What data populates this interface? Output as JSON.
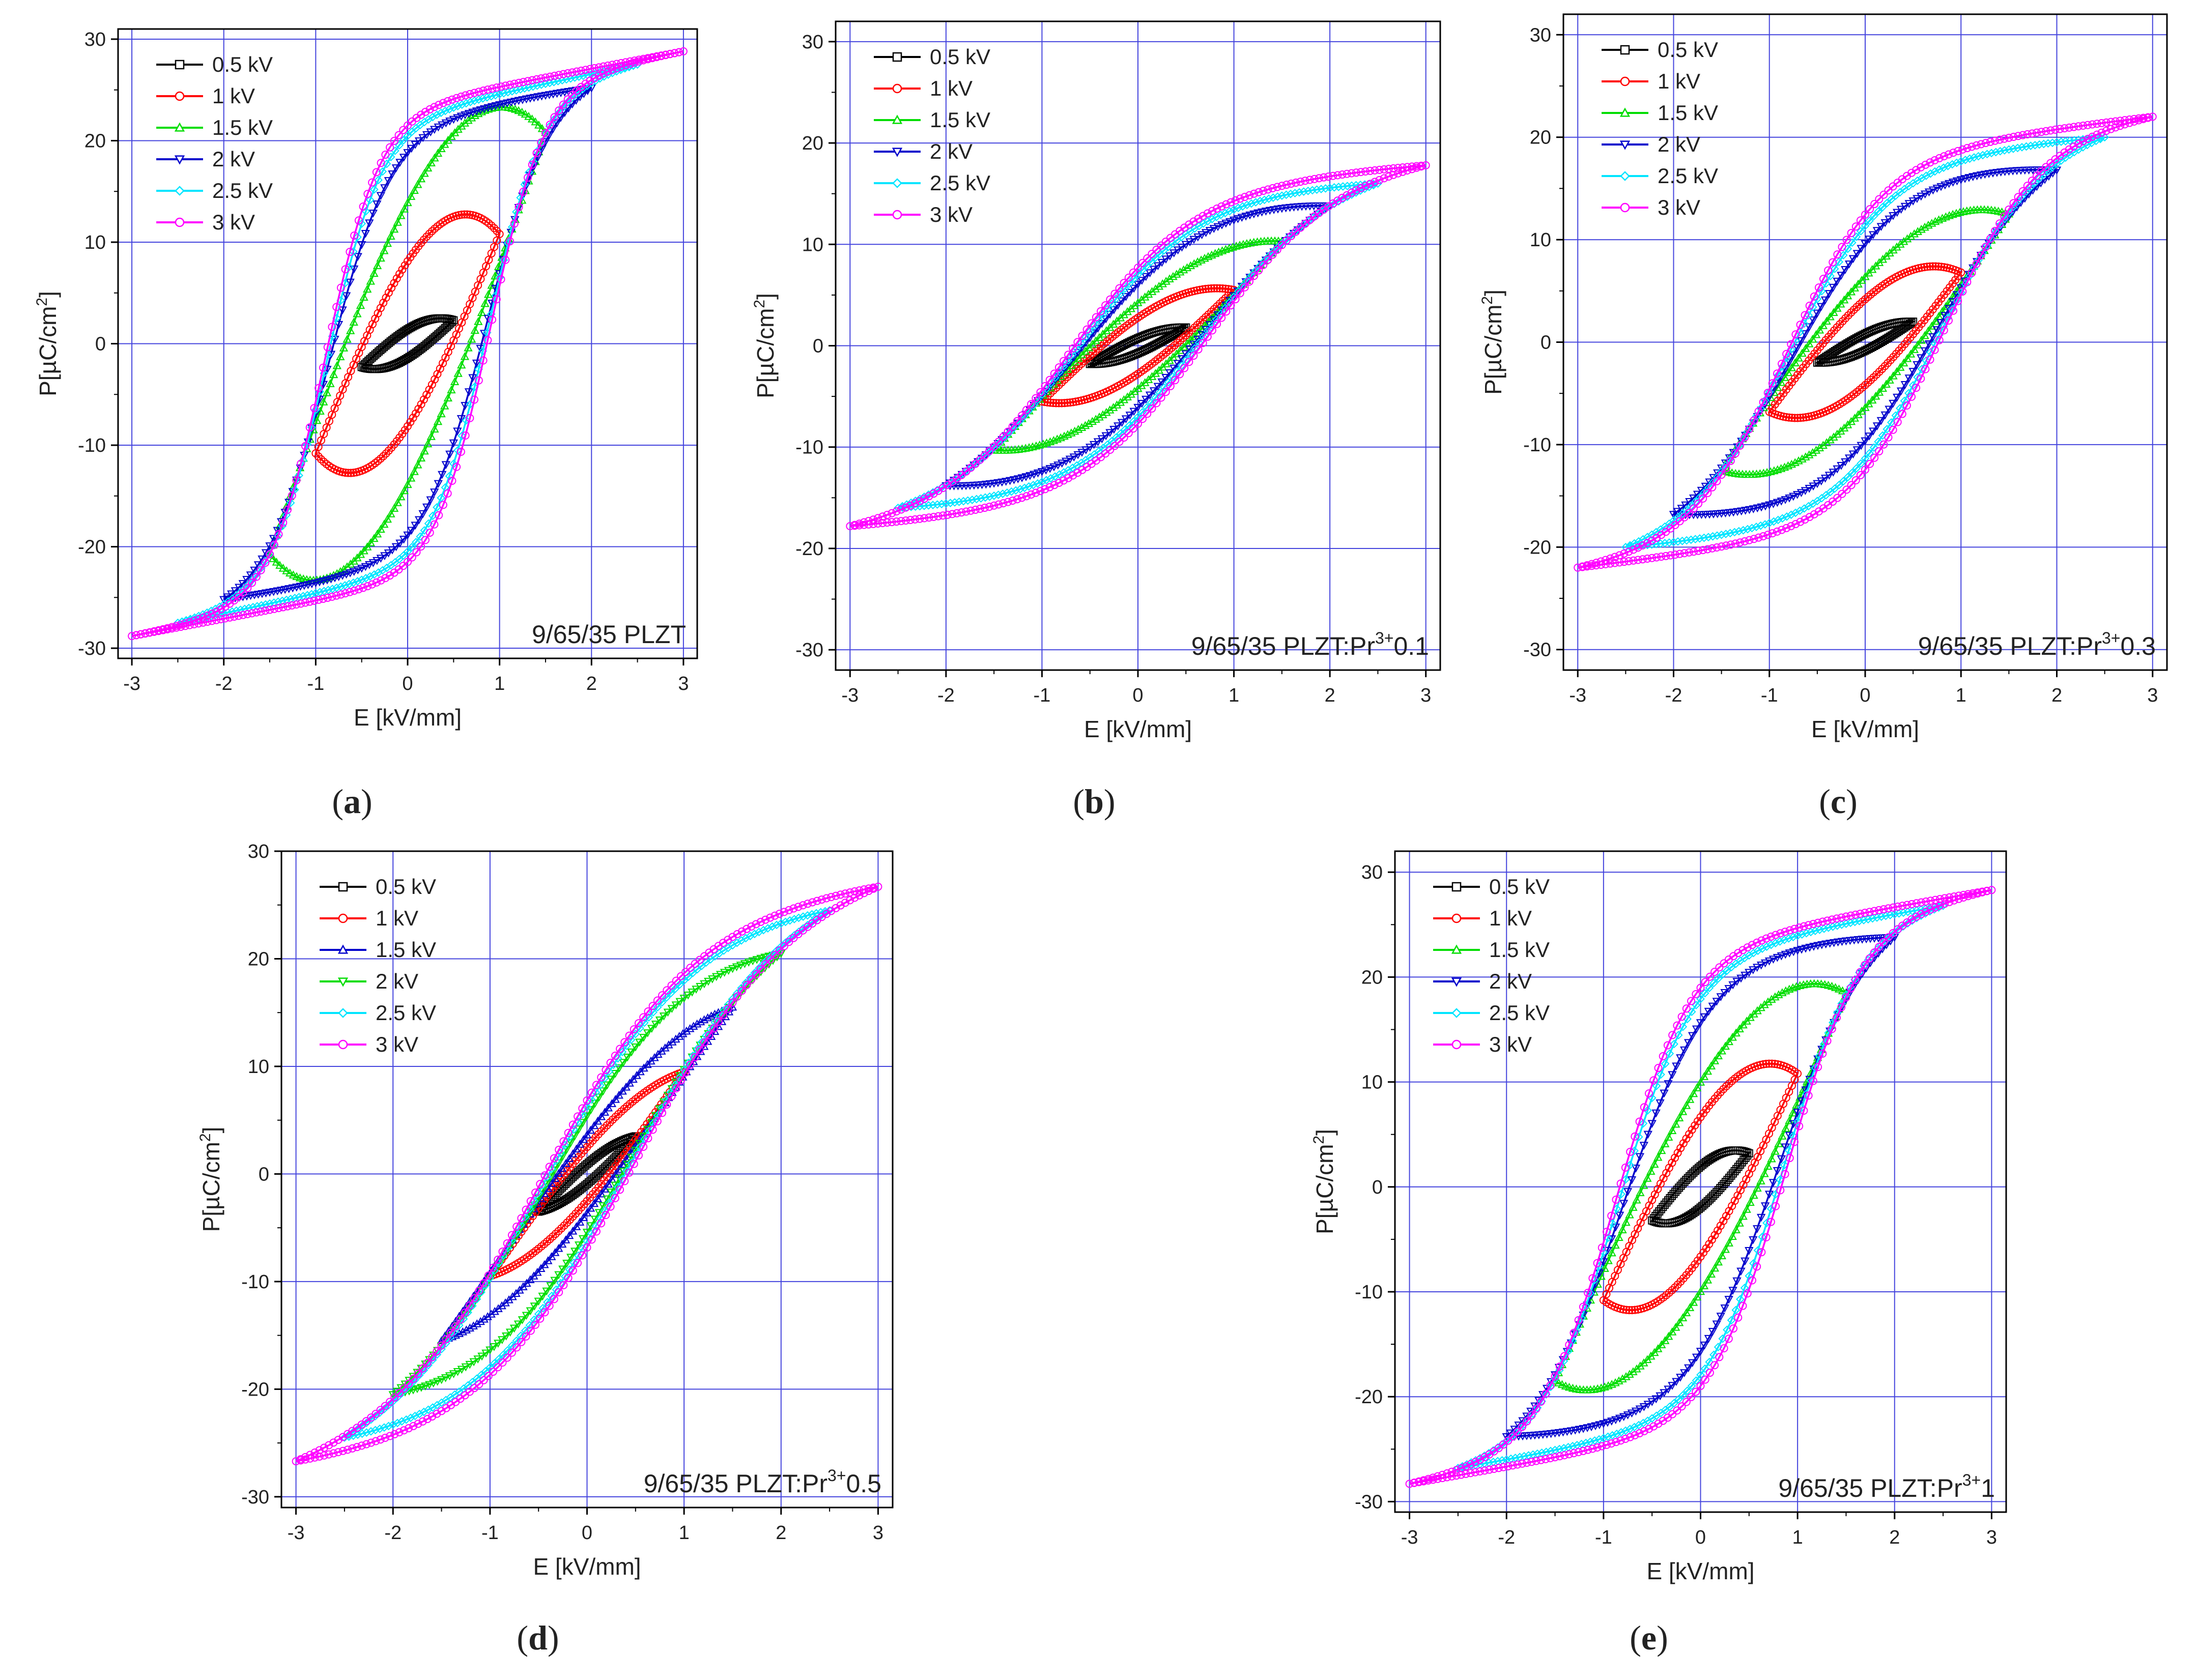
{
  "colors": {
    "loop_0_5kV": "#000000",
    "loop_1kV": "#ff0000",
    "loop_1_5kV": "#00dd00",
    "loop_2kV": "#0000cc",
    "loop_2_5kV": "#00e5ff",
    "loop_3kV": "#ff00ff",
    "grid": "#4444dd",
    "axis": "#000000"
  },
  "chart_data": [
    {
      "id": "a",
      "type": "line",
      "sublabel": "(a)",
      "annotation": {
        "text": "9/65/35 PLZT",
        "superscript": "",
        "suffix": ""
      },
      "xlabel": "E [kV/mm]",
      "ylabel": {
        "prefix": "P[",
        "mu": "µ",
        "unit": "C/cm",
        "power": "2",
        "suffix": "]"
      },
      "xlim": [
        -3.15,
        3.15
      ],
      "ylim": [
        -31,
        31
      ],
      "xticks": [
        -3,
        -2,
        -1,
        0,
        1,
        2,
        3
      ],
      "yticks": [
        -30,
        -20,
        -10,
        0,
        10,
        20,
        30
      ],
      "legend": [
        "0.5 kV",
        "1 kV",
        "1.5 kV",
        "2 kV",
        "2.5 kV",
        "3 kV"
      ],
      "series": [
        {
          "name": "0.5 kV",
          "Emax": 0.5,
          "Pmax": 2.3,
          "Pr": 0.6,
          "Ec": 0.25,
          "color": "loop_0_5kV"
        },
        {
          "name": "1 kV",
          "Emax": 1.0,
          "Pmax": 10.8,
          "Pr": 5.5,
          "Ec": 0.55,
          "color": "loop_1kV"
        },
        {
          "name": "1.5 kV",
          "Emax": 1.5,
          "Pmax": 20.8,
          "Pr": 14.0,
          "Ec": 0.78,
          "color": "loop_1_5kV"
        },
        {
          "name": "2 kV",
          "Emax": 2.0,
          "Pmax": 25.2,
          "Pr": 19.0,
          "Ec": 0.86,
          "color": "loop_2kV"
        },
        {
          "name": "2.5 kV",
          "Emax": 2.5,
          "Pmax": 27.5,
          "Pr": 20.5,
          "Ec": 0.88,
          "color": "loop_2_5kV"
        },
        {
          "name": "3 kV",
          "Emax": 3.0,
          "Pmax": 28.8,
          "Pr": 21.5,
          "Ec": 0.9,
          "color": "loop_3kV"
        }
      ]
    },
    {
      "id": "b",
      "type": "line",
      "sublabel": "(b)",
      "annotation": {
        "text": "9/65/35 PLZT:Pr",
        "superscript": "3+",
        "suffix": "0.1"
      },
      "xlabel": "E [kV/mm]",
      "ylabel": {
        "prefix": "P[",
        "mu": "µ",
        "unit": "C/cm",
        "power": "2",
        "suffix": "]"
      },
      "xlim": [
        -3.15,
        3.15
      ],
      "ylim": [
        -32,
        32
      ],
      "xticks": [
        -3,
        -2,
        -1,
        0,
        1,
        2,
        3
      ],
      "yticks": [
        -30,
        -20,
        -10,
        0,
        10,
        20,
        30
      ],
      "legend": [
        "0.5 kV",
        "1 kV",
        "1.5 kV",
        "2 kV",
        "2.5 kV",
        "3 kV"
      ],
      "series": [
        {
          "name": "0.5 kV",
          "Emax": 0.5,
          "Pmax": 1.8,
          "Pr": 0.4,
          "Ec": 0.2,
          "color": "loop_0_5kV"
        },
        {
          "name": "1 kV",
          "Emax": 1.0,
          "Pmax": 5.5,
          "Pr": 2.5,
          "Ec": 0.45,
          "color": "loop_1kV"
        },
        {
          "name": "1.5 kV",
          "Emax": 1.5,
          "Pmax": 10.3,
          "Pr": 4.8,
          "Ec": 0.6,
          "color": "loop_1_5kV"
        },
        {
          "name": "2 kV",
          "Emax": 2.0,
          "Pmax": 13.8,
          "Pr": 6.5,
          "Ec": 0.65,
          "color": "loop_2kV"
        },
        {
          "name": "2.5 kV",
          "Emax": 2.5,
          "Pmax": 16.0,
          "Pr": 7.2,
          "Ec": 0.68,
          "color": "loop_2_5kV"
        },
        {
          "name": "3 kV",
          "Emax": 3.0,
          "Pmax": 17.8,
          "Pr": 7.8,
          "Ec": 0.72,
          "color": "loop_3kV"
        }
      ]
    },
    {
      "id": "c",
      "type": "line",
      "sublabel": "(c)",
      "annotation": {
        "text": "9/65/35 PLZT:Pr",
        "superscript": "3+",
        "suffix": "0.3"
      },
      "xlabel": "E [kV/mm]",
      "ylabel": {
        "prefix": "P[",
        "mu": "µ",
        "unit": "C/cm",
        "power": "2",
        "suffix": "]"
      },
      "xlim": [
        -3.15,
        3.15
      ],
      "ylim": [
        -32,
        32
      ],
      "xticks": [
        -3,
        -2,
        -1,
        0,
        1,
        2,
        3
      ],
      "yticks": [
        -30,
        -20,
        -10,
        0,
        10,
        20,
        30
      ],
      "legend": [
        "0.5 kV",
        "1 kV",
        "1.5 kV",
        "2 kV",
        "2.5 kV",
        "3 kV"
      ],
      "series": [
        {
          "name": "0.5 kV",
          "Emax": 0.5,
          "Pmax": 2.0,
          "Pr": 0.5,
          "Ec": 0.2,
          "color": "loop_0_5kV"
        },
        {
          "name": "1 kV",
          "Emax": 1.0,
          "Pmax": 6.8,
          "Pr": 3.5,
          "Ec": 0.5,
          "color": "loop_1kV"
        },
        {
          "name": "1.5 kV",
          "Emax": 1.5,
          "Pmax": 12.5,
          "Pr": 7.2,
          "Ec": 0.68,
          "color": "loop_1_5kV"
        },
        {
          "name": "2 kV",
          "Emax": 2.0,
          "Pmax": 16.8,
          "Pr": 10.0,
          "Ec": 0.75,
          "color": "loop_2kV"
        },
        {
          "name": "2.5 kV",
          "Emax": 2.5,
          "Pmax": 20.0,
          "Pr": 11.5,
          "Ec": 0.8,
          "color": "loop_2_5kV"
        },
        {
          "name": "3 kV",
          "Emax": 3.0,
          "Pmax": 22.0,
          "Pr": 12.5,
          "Ec": 0.82,
          "color": "loop_3kV"
        }
      ]
    },
    {
      "id": "d",
      "type": "line",
      "sublabel": "(d)",
      "annotation": {
        "text": "9/65/35 PLZT:Pr",
        "superscript": "3+",
        "suffix": "0.5"
      },
      "xlabel": "E [kV/mm]",
      "ylabel": {
        "prefix": "P[",
        "mu": "µ",
        "unit": "C/cm",
        "power": "2",
        "suffix": "]"
      },
      "xlim": [
        -3.15,
        3.15
      ],
      "ylim": [
        -31,
        30
      ],
      "xticks": [
        -3,
        -2,
        -1,
        0,
        1,
        2,
        3
      ],
      "yticks": [
        -30,
        -20,
        -10,
        0,
        10,
        20,
        30
      ],
      "legend": [
        "0.5 kV",
        "1 kV",
        "1.5 kV",
        "2 kV",
        "2.5 kV",
        "3 kV"
      ],
      "series": [
        {
          "name": "0.5 kV",
          "Emax": 0.5,
          "Pmax": 3.5,
          "Pr": 0.8,
          "Ec": 0.15,
          "color": "loop_0_5kV"
        },
        {
          "name": "1 kV",
          "Emax": 1.0,
          "Pmax": 9.5,
          "Pr": 2.5,
          "Ec": 0.3,
          "color": "loop_1kV"
        },
        {
          "name": "1.5 kV",
          "Emax": 1.5,
          "Pmax": 15.5,
          "Pr": 4.5,
          "Ec": 0.38,
          "color": "loop_2kV"
        },
        {
          "name": "2 kV",
          "Emax": 2.0,
          "Pmax": 20.5,
          "Pr": 5.8,
          "Ec": 0.42,
          "color": "loop_1_5kV"
        },
        {
          "name": "2.5 kV",
          "Emax": 2.5,
          "Pmax": 24.5,
          "Pr": 6.5,
          "Ec": 0.45,
          "color": "loop_2_5kV"
        },
        {
          "name": "3 kV",
          "Emax": 3.0,
          "Pmax": 26.7,
          "Pr": 7.0,
          "Ec": 0.48,
          "color": "loop_3kV"
        }
      ]
    },
    {
      "id": "e",
      "type": "line",
      "sublabel": "(e)",
      "annotation": {
        "text": "9/65/35 PLZT:Pr",
        "superscript": "3+",
        "suffix": "1"
      },
      "xlabel": "E [kV/mm]",
      "ylabel": {
        "prefix": "P[",
        "mu": "µ",
        "unit": "C/cm",
        "power": "2",
        "suffix": "]"
      },
      "xlim": [
        -3.15,
        3.15
      ],
      "ylim": [
        -31,
        32
      ],
      "xticks": [
        -3,
        -2,
        -1,
        0,
        1,
        2,
        3
      ],
      "yticks": [
        -30,
        -20,
        -10,
        0,
        10,
        20,
        30
      ],
      "legend": [
        "0.5 kV",
        "1 kV",
        "1.5 kV",
        "2 kV",
        "2.5 kV",
        "3 kV"
      ],
      "series": [
        {
          "name": "0.5 kV",
          "Emax": 0.5,
          "Pmax": 3.2,
          "Pr": 1.2,
          "Ec": 0.25,
          "color": "loop_0_5kV"
        },
        {
          "name": "1 kV",
          "Emax": 1.0,
          "Pmax": 10.8,
          "Pr": 5.0,
          "Ec": 0.5,
          "color": "loop_1kV"
        },
        {
          "name": "1.5 kV",
          "Emax": 1.5,
          "Pmax": 18.5,
          "Pr": 11.0,
          "Ec": 0.7,
          "color": "loop_1_5kV"
        },
        {
          "name": "2 kV",
          "Emax": 2.0,
          "Pmax": 23.8,
          "Pr": 16.0,
          "Ec": 0.8,
          "color": "loop_2kV"
        },
        {
          "name": "2.5 kV",
          "Emax": 2.5,
          "Pmax": 26.8,
          "Pr": 18.0,
          "Ec": 0.85,
          "color": "loop_2_5kV"
        },
        {
          "name": "3 kV",
          "Emax": 3.0,
          "Pmax": 28.3,
          "Pr": 19.0,
          "Ec": 0.88,
          "color": "loop_3kV"
        }
      ]
    }
  ]
}
